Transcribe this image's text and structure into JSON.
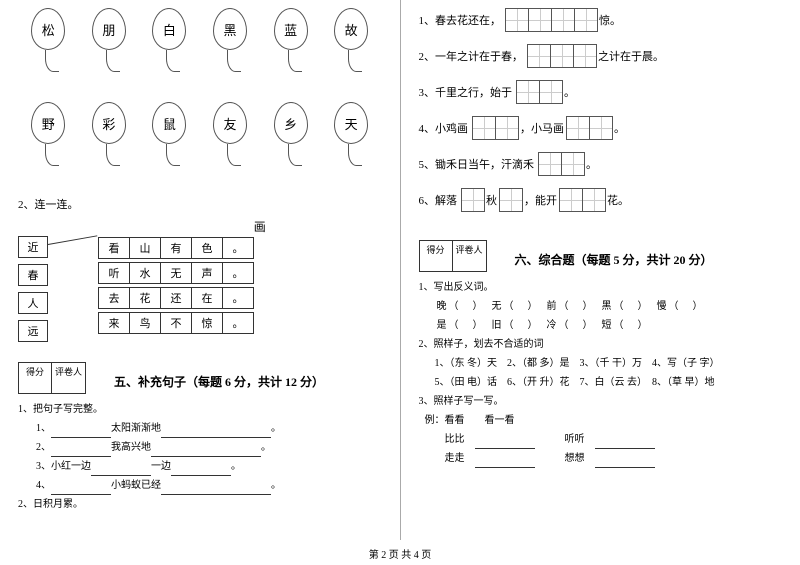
{
  "footer": "第 2 页 共 4 页",
  "left": {
    "balloons_top": [
      "松",
      "朋",
      "白",
      "黑",
      "蓝",
      "故"
    ],
    "balloons_bottom": [
      "野",
      "彩",
      "鼠",
      "友",
      "乡",
      "天"
    ],
    "connect_label": "2、连一连。",
    "connect_top_char": "画",
    "connect_left": [
      "近",
      "春",
      "人",
      "远"
    ],
    "connect_rows": [
      [
        "看",
        "山",
        "有",
        "色",
        "。"
      ],
      [
        "听",
        "水",
        "无",
        "声",
        "。"
      ],
      [
        "去",
        "花",
        "还",
        "在",
        "。"
      ],
      [
        "来",
        "鸟",
        "不",
        "惊",
        "。"
      ]
    ],
    "score_labels": [
      "得分",
      "评卷人"
    ],
    "section5_title": "五、补充句子（每题 6 分，共计 12 分）",
    "s5_q1": "1、把句子写完整。",
    "s5_lines": [
      {
        "n": "1、",
        "a": "",
        "b": "太阳渐渐地",
        "c": ""
      },
      {
        "n": "2、",
        "a": "",
        "b": "我高兴地",
        "c": ""
      },
      {
        "n": "3、小红一边",
        "a": "",
        "b": "一边",
        "c": ""
      },
      {
        "n": "4、",
        "a": "",
        "b": "小蚂蚁已经",
        "c": ""
      }
    ],
    "s5_q2": "2、日积月累。"
  },
  "right": {
    "fill": [
      {
        "pre": "1、春去花还在，",
        "cells": 4,
        "post": "惊。"
      },
      {
        "pre": "2、一年之计在于春，",
        "cells": 3,
        "post": "之计在于晨。"
      },
      {
        "pre": "3、千里之行，始于",
        "cells": 2,
        "post": "。"
      },
      {
        "pre": "4、小鸡画",
        "cells": 2,
        "mid": "，小马画",
        "cells2": 2,
        "post": "。"
      },
      {
        "pre": "5、锄禾日当午，汗滴禾",
        "cells": 2,
        "post": "。"
      },
      {
        "pre": "6、解落",
        "cells": 1,
        "mid": "秋",
        "cells2": 1,
        "mid2": "，能开",
        "cells3": 2,
        "post": "花。"
      }
    ],
    "score_labels": [
      "得分",
      "评卷人"
    ],
    "section6_title": "六、综合题（每题 5 分，共计 20 分）",
    "ex6_q1": "1、写出反义词。",
    "ex6_q1_row1": "　晚（　）　无（　）　前（　）　黑（　）　慢（　）",
    "ex6_q1_row2": "　是（　）　旧（　）　冷（　）　短（　）",
    "ex6_q2": "2、照样子，划去不合适的词",
    "ex6_q2_row1": "　1、（东 冬）天　2、（都 多）是　3、（千 干）万　4、写（子 字）",
    "ex6_q2_row2": "　5、（田 电）话　6、（开 升）花　7、白（云 去）　8、（草 早）地",
    "ex6_q3": "3、照样子写一写。",
    "ex6_q3_ex": "例：看看　　看一看",
    "ex6_q3_row1_a": "比比",
    "ex6_q3_row1_b": "听听",
    "ex6_q3_row2_a": "走走",
    "ex6_q3_row2_b": "想想"
  }
}
